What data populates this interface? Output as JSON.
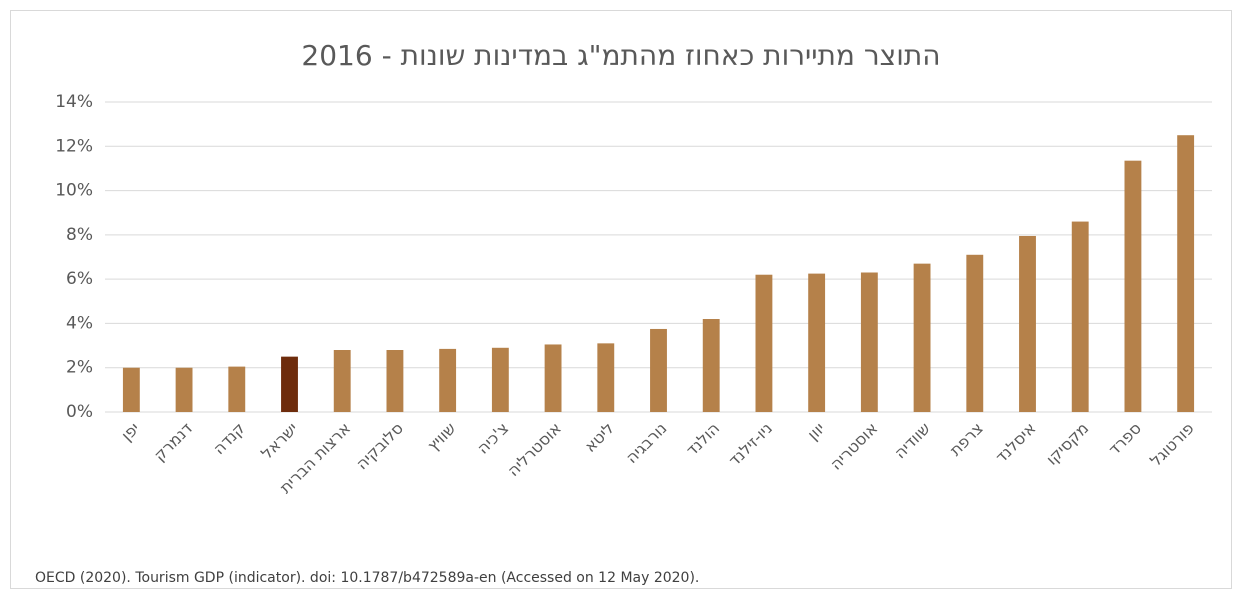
{
  "chart_data": {
    "type": "bar",
    "title": "התוצר מתיירות כאחוז מהתמ\"ג במדינות שונות - 2016",
    "categories": [
      "יפן",
      "דנמרק",
      "קנדה",
      "ישראל",
      "ארצות הברית",
      "סלובקיה",
      "שוויץ",
      "צ'כיה",
      "אוסטרליה",
      "ליטא",
      "נורבגיה",
      "הולנד",
      "ניו-זילנד",
      "יוון",
      "אוסטריה",
      "שוודיה",
      "צרפת",
      "איסלנד",
      "מקסיקו",
      "ספרד",
      "פורטוגל"
    ],
    "values": [
      2.0,
      2.0,
      2.05,
      2.5,
      2.8,
      2.8,
      2.85,
      2.9,
      3.05,
      3.1,
      3.75,
      4.2,
      6.2,
      6.25,
      6.3,
      6.7,
      7.1,
      7.95,
      8.6,
      11.35,
      12.5
    ],
    "colors": [
      "#b5814a",
      "#b5814a",
      "#b5814a",
      "#6e2c0c",
      "#b5814a",
      "#b5814a",
      "#b5814a",
      "#b5814a",
      "#b5814a",
      "#b5814a",
      "#b5814a",
      "#b5814a",
      "#b5814a",
      "#b5814a",
      "#b5814a",
      "#b5814a",
      "#b5814a",
      "#b5814a",
      "#b5814a",
      "#b5814a",
      "#b5814a"
    ],
    "ylim": [
      0,
      14
    ],
    "yticks": [
      {
        "value": 0,
        "label": "0%"
      },
      {
        "value": 2,
        "label": "2%"
      },
      {
        "value": 4,
        "label": "4%"
      },
      {
        "value": 6,
        "label": "6%"
      },
      {
        "value": 8,
        "label": "8%"
      },
      {
        "value": 10,
        "label": "10%"
      },
      {
        "value": 12,
        "label": "12%"
      },
      {
        "value": 14,
        "label": "14%"
      }
    ],
    "grid": true,
    "source": "OECD (2020). Tourism GDP (indicator). doi: 10.1787/b472589a-en (Accessed on 12 May 2020)."
  }
}
